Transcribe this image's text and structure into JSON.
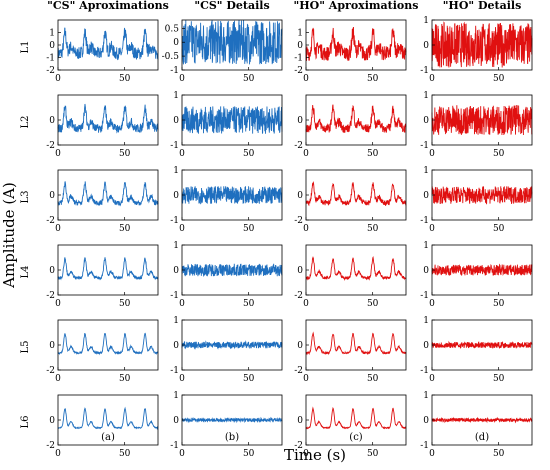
{
  "figure": {
    "ylabel": "Amplitude (A)",
    "xlabel": "Time (s)"
  },
  "chart_data": {
    "type": "line",
    "panel_type": "line",
    "column_titles": [
      "\"CS\" Aproximations",
      "\"CS\" Details",
      "\"HO\" Aproximations",
      "\"HO\" Details"
    ],
    "column_captions": [
      "(a)",
      "(b)",
      "(c)",
      "(d)"
    ],
    "row_labels": [
      "L1",
      "L2",
      "L3",
      "L4",
      "L5",
      "L6"
    ],
    "series_colors": {
      "CS": "#1f6fbf",
      "HO": "#e01010"
    },
    "x_range": [
      0,
      75
    ],
    "x_ticks": [
      0,
      50
    ],
    "periodic_cycles": 5,
    "panels": [
      [
        {
          "ylim": [
            -2,
            2
          ],
          "yticks": [
            -2,
            -1,
            0,
            1
          ],
          "amplitude": 1.5,
          "noise": 0.5,
          "kind": "approx"
        },
        {
          "ylim": [
            -1,
            0.8
          ],
          "yticks": [
            -1,
            -0.5,
            0,
            0.5
          ],
          "amplitude": 0,
          "noise": 0.8,
          "kind": "detail"
        },
        {
          "ylim": [
            -2,
            2
          ],
          "yticks": [
            -2,
            -1,
            0,
            1
          ],
          "amplitude": 1.5,
          "noise": 0.6,
          "kind": "approx"
        },
        {
          "ylim": [
            -1,
            1
          ],
          "yticks": [
            -1,
            0,
            1
          ],
          "amplitude": 0,
          "noise": 0.9,
          "kind": "detail"
        }
      ],
      [
        {
          "ylim": [
            -2,
            2
          ],
          "yticks": [
            -2,
            0
          ],
          "amplitude": 1.5,
          "noise": 0.35,
          "kind": "approx"
        },
        {
          "ylim": [
            -1,
            1
          ],
          "yticks": [
            -1,
            0,
            1
          ],
          "amplitude": 0,
          "noise": 0.55,
          "kind": "detail"
        },
        {
          "ylim": [
            -2,
            2
          ],
          "yticks": [
            -2,
            0
          ],
          "amplitude": 1.5,
          "noise": 0.35,
          "kind": "approx"
        },
        {
          "ylim": [
            -1,
            1
          ],
          "yticks": [
            -1,
            0,
            1
          ],
          "amplitude": 0,
          "noise": 0.6,
          "kind": "detail"
        }
      ],
      [
        {
          "ylim": [
            -2,
            2
          ],
          "yticks": [
            -2,
            0
          ],
          "amplitude": 1.4,
          "noise": 0.2,
          "kind": "approx"
        },
        {
          "ylim": [
            -1,
            1
          ],
          "yticks": [
            -1,
            0,
            1
          ],
          "amplitude": 0,
          "noise": 0.35,
          "kind": "detail"
        },
        {
          "ylim": [
            -2,
            2
          ],
          "yticks": [
            -2,
            0
          ],
          "amplitude": 1.4,
          "noise": 0.2,
          "kind": "approx"
        },
        {
          "ylim": [
            -1,
            1
          ],
          "yticks": [
            -1,
            0,
            1
          ],
          "amplitude": 0,
          "noise": 0.35,
          "kind": "detail"
        }
      ],
      [
        {
          "ylim": [
            -2,
            2
          ],
          "yticks": [
            -2,
            0
          ],
          "amplitude": 1.4,
          "noise": 0.12,
          "kind": "approx"
        },
        {
          "ylim": [
            -1,
            1
          ],
          "yticks": [
            -1,
            0,
            1
          ],
          "amplitude": 0,
          "noise": 0.25,
          "kind": "detail"
        },
        {
          "ylim": [
            -2,
            2
          ],
          "yticks": [
            -2,
            0
          ],
          "amplitude": 1.4,
          "noise": 0.12,
          "kind": "approx"
        },
        {
          "ylim": [
            -1,
            1
          ],
          "yticks": [
            -1,
            0,
            1
          ],
          "amplitude": 0,
          "noise": 0.22,
          "kind": "detail"
        }
      ],
      [
        {
          "ylim": [
            -2,
            2
          ],
          "yticks": [
            -2,
            0
          ],
          "amplitude": 1.4,
          "noise": 0.07,
          "kind": "approx"
        },
        {
          "ylim": [
            -1,
            1
          ],
          "yticks": [
            -1,
            0,
            1
          ],
          "amplitude": 0,
          "noise": 0.13,
          "kind": "detail"
        },
        {
          "ylim": [
            -2,
            2
          ],
          "yticks": [
            -2,
            0
          ],
          "amplitude": 1.4,
          "noise": 0.07,
          "kind": "approx"
        },
        {
          "ylim": [
            -1,
            1
          ],
          "yticks": [
            -1,
            0,
            1
          ],
          "amplitude": 0,
          "noise": 0.12,
          "kind": "detail"
        }
      ],
      [
        {
          "ylim": [
            -2,
            2
          ],
          "yticks": [
            -2,
            0
          ],
          "amplitude": 1.4,
          "noise": 0.04,
          "kind": "approx"
        },
        {
          "ylim": [
            -1,
            1
          ],
          "yticks": [
            -1,
            0,
            1
          ],
          "amplitude": 0,
          "noise": 0.07,
          "kind": "detail"
        },
        {
          "ylim": [
            -2,
            2
          ],
          "yticks": [
            -2,
            0
          ],
          "amplitude": 1.4,
          "noise": 0.04,
          "kind": "approx"
        },
        {
          "ylim": [
            -1,
            1
          ],
          "yticks": [
            -1,
            0,
            1
          ],
          "amplitude": 0,
          "noise": 0.07,
          "kind": "detail"
        }
      ]
    ]
  }
}
